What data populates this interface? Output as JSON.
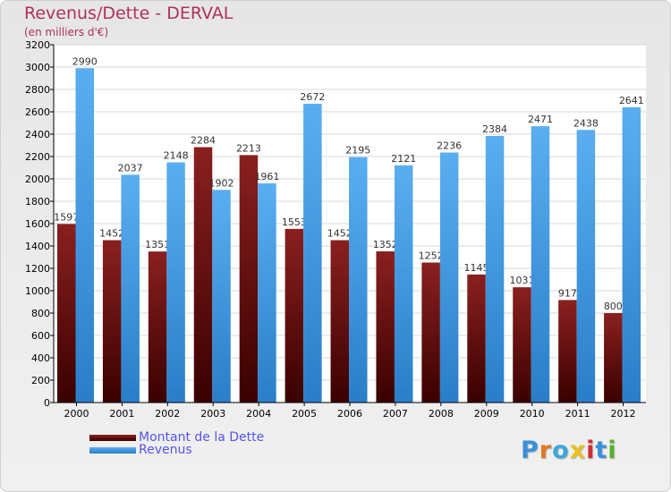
{
  "colors": {
    "dette_top": "#8a2020",
    "dette_bottom": "#3a0000",
    "revenus_top": "#5aaef0",
    "revenus_bottom": "#2a7ec8",
    "title": "#b0305a",
    "legend_text": "#5555ee",
    "axis_text": "#000000",
    "value_text": "#333333"
  },
  "logo": {
    "letters": [
      "P",
      "r",
      "o",
      "x",
      "i",
      "t",
      "i"
    ],
    "colors": [
      "#3a8fd8",
      "#e07a20",
      "#3aa8d8",
      "#e8c020",
      "#d03030",
      "#3a8fd8",
      "#58b030"
    ]
  },
  "chart_data": {
    "type": "bar",
    "title": "Revenus/Dette - DERVAL",
    "subtitle": "(en milliers d'€)",
    "categories": [
      "2000",
      "2001",
      "2002",
      "2003",
      "2004",
      "2005",
      "2006",
      "2007",
      "2008",
      "2009",
      "2010",
      "2011",
      "2012"
    ],
    "series": [
      {
        "name": "Montant de la Dette",
        "values": [
          1597,
          1452,
          1351,
          2284,
          2213,
          1553,
          1452,
          1352,
          1252,
          1145,
          1031,
          917,
          800
        ],
        "labels": [
          "1597",
          "1452",
          "1351",
          "2284",
          "2213",
          "1553",
          "1452",
          "1352",
          "1252",
          "1145",
          "1031",
          "917",
          "800"
        ]
      },
      {
        "name": "Revenus",
        "values": [
          2990,
          2037,
          2148,
          1902,
          1961,
          2672,
          2195,
          2121,
          2236,
          2384,
          2471,
          2438,
          2641
        ],
        "labels": [
          "2990",
          "2037",
          "2148",
          "1902",
          "1961",
          "2672",
          "2195",
          "2121",
          "2236",
          "2384",
          "2471",
          "2438",
          "2641"
        ]
      }
    ],
    "yticks": [
      "0",
      "200",
      "400",
      "600",
      "800",
      "1000",
      "1200",
      "1400",
      "1600",
      "1800",
      "2000",
      "2200",
      "2400",
      "2600",
      "2800",
      "3000",
      "3200"
    ],
    "ylim": [
      0,
      3200
    ],
    "ystep": 200,
    "grid": true,
    "legend_position": "bottom-left"
  }
}
